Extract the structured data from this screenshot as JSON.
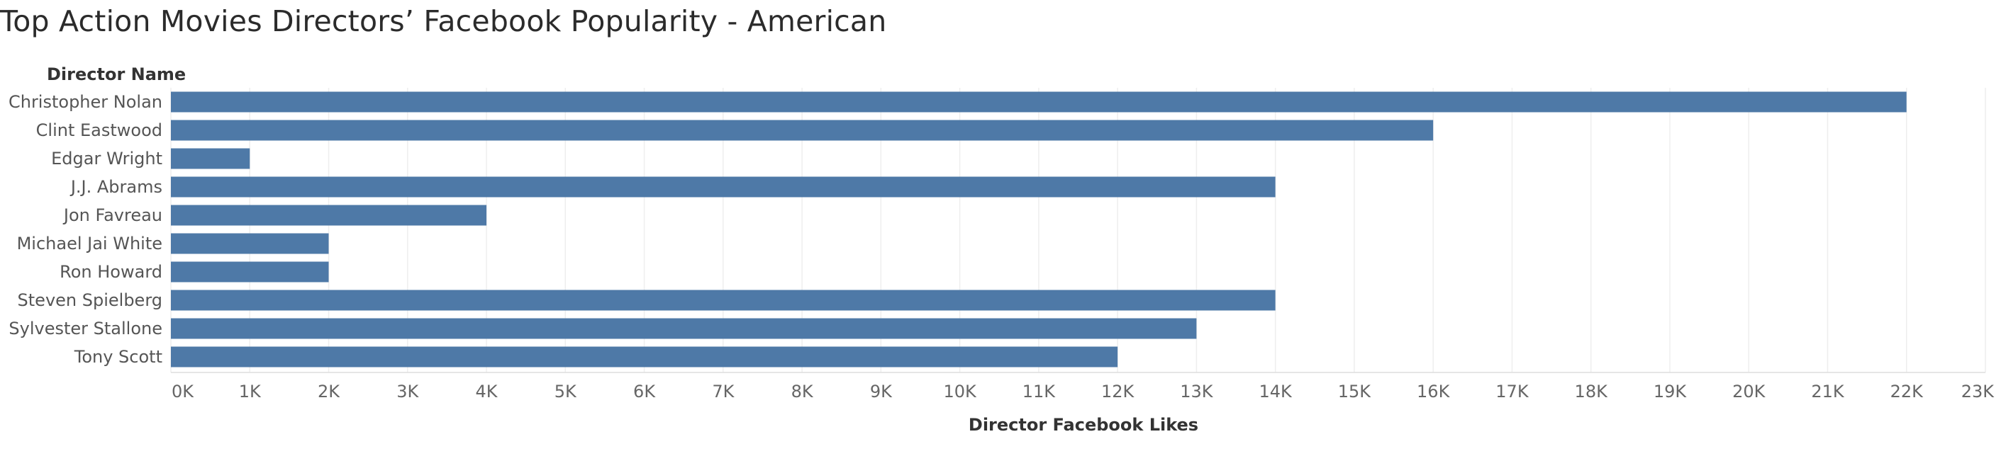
{
  "title": "Top Action Movies Directors’ Facebook Popularity - American",
  "chart_data": {
    "type": "bar",
    "orientation": "horizontal",
    "title": "Top Action Movies Directors’ Facebook Popularity - American",
    "row_header": "Director Name",
    "xlabel": "Director Facebook Likes",
    "ylabel": "Director Name",
    "categories": [
      "Christopher Nolan",
      "Clint Eastwood",
      "Edgar Wright",
      "J.J. Abrams",
      "Jon Favreau",
      "Michael Jai White",
      "Ron Howard",
      "Steven Spielberg",
      "Sylvester Stallone",
      "Tony Scott"
    ],
    "values": [
      22000,
      16000,
      1000,
      14000,
      4000,
      2000,
      2000,
      14000,
      13000,
      12000
    ],
    "xlim": [
      0,
      23000
    ],
    "x_ticks": [
      0,
      1000,
      2000,
      3000,
      4000,
      5000,
      6000,
      7000,
      8000,
      9000,
      10000,
      11000,
      12000,
      13000,
      14000,
      15000,
      16000,
      17000,
      18000,
      19000,
      20000,
      21000,
      22000,
      23000
    ],
    "x_tick_labels": [
      "0K",
      "1K",
      "2K",
      "3K",
      "4K",
      "5K",
      "6K",
      "7K",
      "8K",
      "9K",
      "10K",
      "11K",
      "12K",
      "13K",
      "14K",
      "15K",
      "16K",
      "17K",
      "18K",
      "19K",
      "20K",
      "21K",
      "22K",
      "23K"
    ],
    "grid": true,
    "legend": "none",
    "bar_color": "#4e79a7",
    "grid_color": "#eeeeee"
  }
}
